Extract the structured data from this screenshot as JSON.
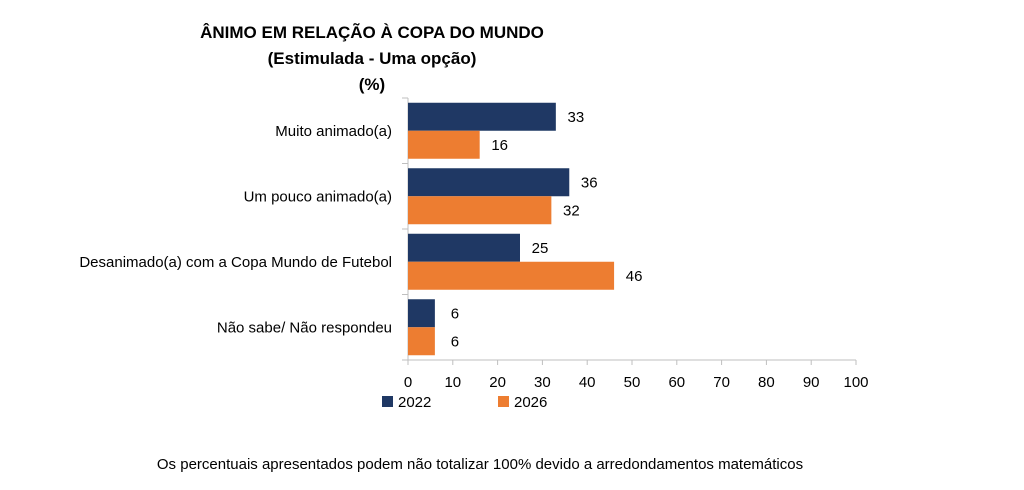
{
  "chart_data": {
    "type": "bar",
    "orientation": "horizontal",
    "title_lines": [
      "ÂNIMO EM RELAÇÃO À COPA DO MUNDO",
      "(Estimulada - Uma opção)",
      "(%)"
    ],
    "categories": [
      "Muito animado(a)",
      "Um pouco animado(a)",
      "Desanimado(a) com a Copa Mundo de Futebol",
      "Não sabe/ Não respondeu"
    ],
    "series": [
      {
        "name": "2022",
        "color": "#1f3864",
        "values": [
          33,
          36,
          25,
          6
        ]
      },
      {
        "name": "2026",
        "color": "#ed7d31",
        "values": [
          16,
          32,
          46,
          6
        ]
      }
    ],
    "xlim": [
      0,
      100
    ],
    "x_ticks": [
      0,
      10,
      20,
      30,
      40,
      50,
      60,
      70,
      80,
      90,
      100
    ],
    "grid": false,
    "legend_position": "bottom"
  },
  "footnote": "Os percentuais apresentados podem não totalizar 100% devido a arredondamentos matemáticos"
}
